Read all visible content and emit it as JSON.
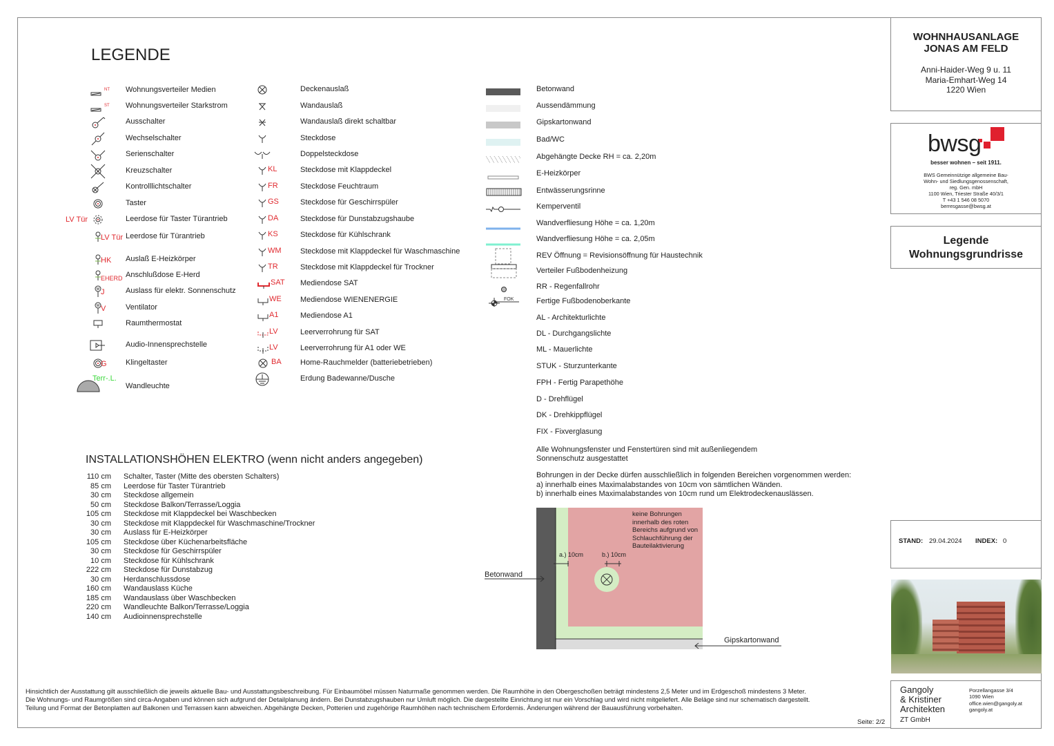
{
  "legend_title": "LEGENDE",
  "column1": [
    {
      "icon": "distribution-box-icon",
      "code": "NT",
      "label": "Wohnungsverteiler Medien"
    },
    {
      "icon": "distribution-box-icon",
      "code": "ST",
      "label": "Wohnungsverteiler Starkstrom"
    },
    {
      "icon": "switch-icon",
      "code": "",
      "label": "Ausschalter"
    },
    {
      "icon": "two-way-switch-icon",
      "code": "",
      "label": "Wechselschalter"
    },
    {
      "icon": "series-switch-icon",
      "code": "",
      "label": "Serienschalter"
    },
    {
      "icon": "cross-switch-icon",
      "code": "",
      "label": "Kreuzschalter"
    },
    {
      "icon": "indicator-switch-icon",
      "code": "",
      "label": "Kontrolllichtschalter"
    },
    {
      "icon": "push-button-icon",
      "code": "",
      "label": "Taster"
    },
    {
      "icon": "empty-box-button-icon",
      "code": "LV Tür",
      "label": "Leerdose für Taster Türantrieb"
    },
    {
      "icon": "outlet-pin-icon",
      "code": "LV Tür",
      "label": "Leerdose für Türantrieb"
    },
    {
      "icon": "outlet-pin-icon",
      "code": "HK",
      "label": "Auslaß E-Heizkörper"
    },
    {
      "icon": "outlet-pin-icon",
      "code": "EHERD",
      "label": "Anschlußdose E-Herd"
    },
    {
      "icon": "motor-outlet-icon",
      "code": "J",
      "label": "Auslass für elektr. Sonnenschutz"
    },
    {
      "icon": "motor-outlet-icon",
      "code": "V",
      "label": "Ventilator"
    },
    {
      "icon": "thermostat-icon",
      "code": "",
      "label": "Raumthermostat"
    },
    {
      "icon": "intercom-icon",
      "code": "",
      "label": "Audio-Innensprechstelle"
    },
    {
      "icon": "push-button-icon",
      "code": "G",
      "label": "Klingeltaster"
    },
    {
      "icon": "wall-lamp-icon",
      "code": "Terr-.L.",
      "label": "Wandleuchte"
    }
  ],
  "column2": [
    {
      "icon": "ceiling-outlet-icon",
      "code": "",
      "label": "Deckenauslaß"
    },
    {
      "icon": "wall-outlet-icon",
      "code": "",
      "label": "Wandauslaß"
    },
    {
      "icon": "wall-outlet-switched-icon",
      "code": "",
      "label": "Wandauslaß direkt schaltbar"
    },
    {
      "icon": "socket-icon",
      "code": "",
      "label": "Steckdose"
    },
    {
      "icon": "double-socket-icon",
      "code": "",
      "label": "Doppelsteckdose"
    },
    {
      "icon": "socket-icon",
      "code": "KL",
      "label": "Steckdose mit Klappdeckel"
    },
    {
      "icon": "socket-icon",
      "code": "FR",
      "label": "Steckdose Feuchtraum"
    },
    {
      "icon": "socket-icon",
      "code": "GS",
      "label": "Steckdose für Geschirrspüler"
    },
    {
      "icon": "socket-icon",
      "code": "DA",
      "label": "Steckdose für Dunstabzugshaube"
    },
    {
      "icon": "socket-icon",
      "code": "KS",
      "label": "Steckdose für Kühlschrank"
    },
    {
      "icon": "socket-icon",
      "code": "WM",
      "label": "Steckdose mit Klappdeckel für Waschmaschine"
    },
    {
      "icon": "socket-icon",
      "code": "TR",
      "label": "Steckdose mit Klappdeckel für Trockner"
    },
    {
      "icon": "media-socket-sat-icon",
      "code": "SAT",
      "label": "Mediendose SAT"
    },
    {
      "icon": "media-socket-icon",
      "code": "WE",
      "label": "Mediendose WIENENERGIE"
    },
    {
      "icon": "media-socket-icon",
      "code": "A1",
      "label": "Mediendose A1"
    },
    {
      "icon": "conduit-sat-icon",
      "code": "LV",
      "label": "Leerverrohrung für SAT"
    },
    {
      "icon": "conduit-icon",
      "code": "LV",
      "label": "Leerverrohrung für A1 oder WE"
    },
    {
      "icon": "smoke-detector-icon",
      "code": "BA",
      "label": "Home-Rauchmelder (batteriebetrieben)"
    },
    {
      "icon": "grounding-icon",
      "code": "",
      "label": "Erdung Badewanne/Dusche"
    }
  ],
  "column3": [
    {
      "icon": "concrete-wall-swatch",
      "label": "Betonwand"
    },
    {
      "icon": "insulation-swatch",
      "label": "Aussendämmung"
    },
    {
      "icon": "drywall-swatch",
      "label": "Gipskartonwand"
    },
    {
      "icon": "bathroom-swatch",
      "label": "Bad/WC"
    },
    {
      "icon": "suspended-ceiling-hatch",
      "label": "Abgehängte Decke RH = ca. 2,20m"
    },
    {
      "icon": "heater-icon",
      "label": "E-Heizkörper"
    },
    {
      "icon": "drain-channel-icon",
      "label": "Entwässerungsrinne"
    },
    {
      "icon": "valve-icon",
      "label": "Kemperventil"
    },
    {
      "icon": "tile-line-blue",
      "label": "Wandverfliesung Höhe = ca. 1,20m"
    },
    {
      "icon": "tile-line-teal",
      "label": "Wandverfliesung Höhe = ca. 2,05m"
    },
    {
      "icon": "revision-opening-icon",
      "label": "REV Öffnung = Revisionsöffnung für Haustechnik"
    },
    {
      "icon": "floor-heating-manifold-icon",
      "label": "Verteiler Fußbodenheizung"
    },
    {
      "icon": "downpipe-icon",
      "label": "RR - Regenfallrohr"
    },
    {
      "icon": "floor-level-icon",
      "code": "FOK",
      "label": "Fertige Fußbodenoberkante"
    },
    {
      "icon": "",
      "label": "AL - Architekturlichte"
    },
    {
      "icon": "",
      "label": "DL - Durchgangslichte"
    },
    {
      "icon": "",
      "label": "ML - Mauerlichte"
    },
    {
      "icon": "",
      "label": "STUK - Sturzunterkante"
    },
    {
      "icon": "",
      "label": "FPH - Fertig Parapethöhe"
    },
    {
      "icon": "",
      "label": "D - Drehflügel"
    },
    {
      "icon": "",
      "label": "DK - Drehkippflügel"
    },
    {
      "icon": "",
      "label": "FIX - Fixverglasung"
    }
  ],
  "note_sunshade": [
    "Alle Wohnungsfenster und Fenstertüren sind mit außenliegendem",
    "Sonnenschutz ausgestattet"
  ],
  "note_drilling": [
    "Bohrungen in der Decke dürfen ausschließlich in folgenden Bereichen vorgenommen werden:",
    "a) innerhalb eines Maximalabstandes von 10cm von sämtlichen Wänden.",
    "b) innerhalb eines Maximalabstandes von 10cm rund um Elektrodeckenauslässen."
  ],
  "diagram": {
    "concrete_label": "Betonwand",
    "drywall_label": "Gipskartonwand",
    "dim_a": "a.) 10cm",
    "dim_b": "b.) 10cm",
    "red_note": [
      "keine Bohrungen",
      "innerhalb des roten",
      "Bereichs aufgrund von",
      "Schlauchführung der",
      "Bauteilaktivierung"
    ]
  },
  "heights": {
    "title": "INSTALLATIONSHÖHEN ELEKTRO (wenn nicht anders angegeben)",
    "rows": [
      [
        "110 cm",
        "Schalter, Taster (Mitte des obersten Schalters)"
      ],
      [
        "85 cm",
        "Leerdose für Taster Türantrieb"
      ],
      [
        "30 cm",
        "Steckdose allgemein"
      ],
      [
        "50 cm",
        "Steckdose Balkon/Terrasse/Loggia"
      ],
      [
        "105 cm",
        "Steckdose mit Klappdeckel bei Waschbecken"
      ],
      [
        "30 cm",
        "Steckdose mit Klappdeckel für Waschmaschine/Trockner"
      ],
      [
        "30 cm",
        "Auslass für E-Heizkörper"
      ],
      [
        "105 cm",
        "Steckdose über Küchenarbeitsfläche"
      ],
      [
        "30 cm",
        "Steckdose für Geschirrspüler"
      ],
      [
        "10 cm",
        "Steckdose für Kühlschrank"
      ],
      [
        "222 cm",
        "Steckdose für Dunstabzug"
      ],
      [
        "30 cm",
        "Herdanschlussdose"
      ],
      [
        "160 cm",
        "Wandauslass Küche"
      ],
      [
        "185 cm",
        "Wandauslass über Waschbecken"
      ],
      [
        "220 cm",
        "Wandleuchte Balkon/Terrasse/Loggia"
      ],
      [
        "140 cm",
        "Audioinnensprechstelle"
      ]
    ]
  },
  "footer": {
    "lines": [
      "Hinsichtlich der Ausstattung gilt ausschließlich die jeweils aktuelle Bau- und Ausstattungsbeschreibung. Für Einbaumöbel müssen Naturmaße genommen werden. Die Raumhöhe in den Obergeschoßen beträgt mindestens 2,5 Meter und im Erdgeschoß mindestens 3 Meter.",
      "Die Wohnungs- und Raumgrößen sind circa-Angaben und können sich aufgrund der Detailplanung ändern. Bei Dunstabzugshauben nur Umluft möglich. Die dargestellte Einrichtung ist nur ein Vorschlag und wird nicht mitgeliefert. Alle Beläge sind nur schematisch dargestellt.",
      "Teilung und Format der Betonplatten auf Balkonen und Terrassen kann abweichen. Abgehängte Decken, Potterien und zugehörige Raumhöhen nach technischem Erfordernis. Änderungen während der Bauausführung vorbehalten."
    ],
    "page": "Seite: 2/2"
  },
  "title_block": {
    "project": [
      "WOHNHAUSANLAGE",
      "JONAS AM FELD"
    ],
    "address": [
      "Anni-Haider-Weg 9 u. 11",
      "Maria-Emhart-Weg 14",
      "1220 Wien"
    ],
    "sheet_title": [
      "Legende",
      "Wohnungsgrundrisse"
    ],
    "stand_label": "STAND:",
    "stand_value": "29.04.2024",
    "index_label": "INDEX:",
    "index_value": "0"
  },
  "client": {
    "logo_text": "bwsg",
    "slogan": "besser wohnen – seit 1911.",
    "lines": [
      "BWS Gemeinnützige allgemeine Bau-",
      "Wohn- und Siedlungsgenossenschaft,",
      "reg. Gen. mbH",
      "1100 Wien, Triester Straße 40/3/1",
      "T +43 1 546 08 5070",
      "berresgasse@bwsg.at"
    ],
    "brand_color": "#e0202e"
  },
  "architect": {
    "name": [
      "Gangoly",
      "& Kristiner",
      "Architekten",
      "ZT GmbH"
    ],
    "address": [
      "Porzellangasse 3/4",
      "1090 Wien",
      "office.wien@gangoly.at",
      "gangoly.at"
    ]
  },
  "colors": {
    "code_red": "#e0282e",
    "concrete": "#5a5a5a",
    "drywall": "#c8c8c8",
    "insulation": "#f0f0f0",
    "bath": "#dff2f2",
    "tile_blue": "#7fb2ec",
    "tile_teal": "#7ff0d0",
    "no_drill_red": "#e2a4a4",
    "drill_green": "#d4edc4"
  }
}
